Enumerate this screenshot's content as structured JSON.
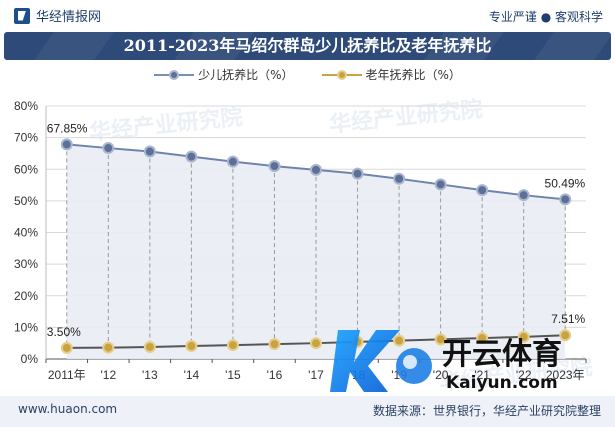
{
  "header": {
    "brand": "华经情报网",
    "tagline": "专业严谨 ● 客观科学"
  },
  "chart_data": {
    "type": "line",
    "title": "2011-2023年马绍尔群岛少儿抚养比及老年抚养比",
    "categories": [
      "2011年",
      "'12",
      "'13",
      "'14",
      "'15",
      "'16",
      "'17",
      "'18",
      "'19",
      "'20",
      "'21",
      "'22",
      "2023年"
    ],
    "series": [
      {
        "name": "少儿抚养比（%）",
        "color": "#7a8fb8",
        "values": [
          67.85,
          66.7,
          65.6,
          64.0,
          62.4,
          61.0,
          59.8,
          58.6,
          57.0,
          55.2,
          53.4,
          51.8,
          50.49
        ]
      },
      {
        "name": "老年抚养比（%）",
        "color": "#c9a341",
        "values": [
          3.5,
          3.6,
          3.8,
          4.1,
          4.4,
          4.7,
          5.0,
          5.4,
          5.8,
          6.2,
          6.6,
          7.0,
          7.51
        ]
      }
    ],
    "ylim": [
      0,
      80
    ],
    "yticks": [
      "0%",
      "10%",
      "20%",
      "30%",
      "40%",
      "50%",
      "60%",
      "70%",
      "80%"
    ],
    "data_labels": [
      {
        "series": 0,
        "index": 0,
        "text": "67.85%"
      },
      {
        "series": 0,
        "index": 12,
        "text": "50.49%"
      },
      {
        "series": 1,
        "index": 0,
        "text": "3.50%"
      },
      {
        "series": 1,
        "index": 12,
        "text": "7.51%"
      }
    ],
    "legend_position": "top"
  },
  "footer": {
    "website": "www.huaon.com",
    "source": "数据来源：世界银行，华经产业研究院整理"
  },
  "overlays": {
    "watermark_text": "华经产业研究院",
    "kaiyun_cn": "开云体育",
    "kaiyun_en": "Kaiyun.com"
  },
  "colors": {
    "title_bg": "#2e4a79",
    "area_fill": "#e9ecf4"
  }
}
